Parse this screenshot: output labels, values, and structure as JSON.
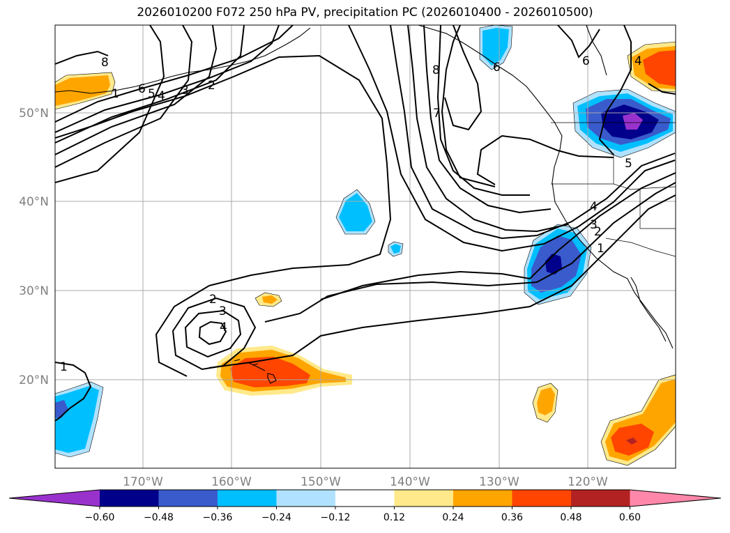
{
  "title": "2026010200 F072 250 hPa PV, precipitation PC (2026010400 - 2026010500)",
  "map": {
    "extent": {
      "lon_min": -180,
      "lon_max": -110.3,
      "lat_min": 10,
      "lat_max": 59.7
    },
    "lat_ticks": [
      20,
      30,
      40,
      50
    ],
    "lat_labels": [
      "20°N",
      "30°N",
      "40°N",
      "50°N"
    ],
    "lon_ticks": [
      -170,
      -160,
      -150,
      -140,
      -130,
      -120
    ],
    "lon_labels": [
      "170°W",
      "160°W",
      "150°W",
      "140°W",
      "130°W",
      "120°W"
    ],
    "gridlines": true
  },
  "colorbar": {
    "levels": [
      -0.6,
      -0.48,
      -0.36,
      -0.24,
      -0.12,
      0.12,
      0.24,
      0.36,
      0.48,
      0.6
    ],
    "tick_labels": [
      "−0.60",
      "−0.48",
      "−0.36",
      "−0.24",
      "−0.12",
      "0.12",
      "0.24",
      "0.36",
      "0.48",
      "0.60"
    ],
    "colors": [
      "#9932cc",
      "#00008b",
      "#3a5bcc",
      "#00bfff",
      "#b0e2ff",
      "#ffffff",
      "#ffe98a",
      "#ffa500",
      "#ff4500",
      "#b22222",
      "#ff88aa"
    ],
    "extend": "both"
  },
  "pv_contour_labels": [
    "1",
    "2",
    "3",
    "4",
    "5",
    "6",
    "7",
    "8"
  ]
}
